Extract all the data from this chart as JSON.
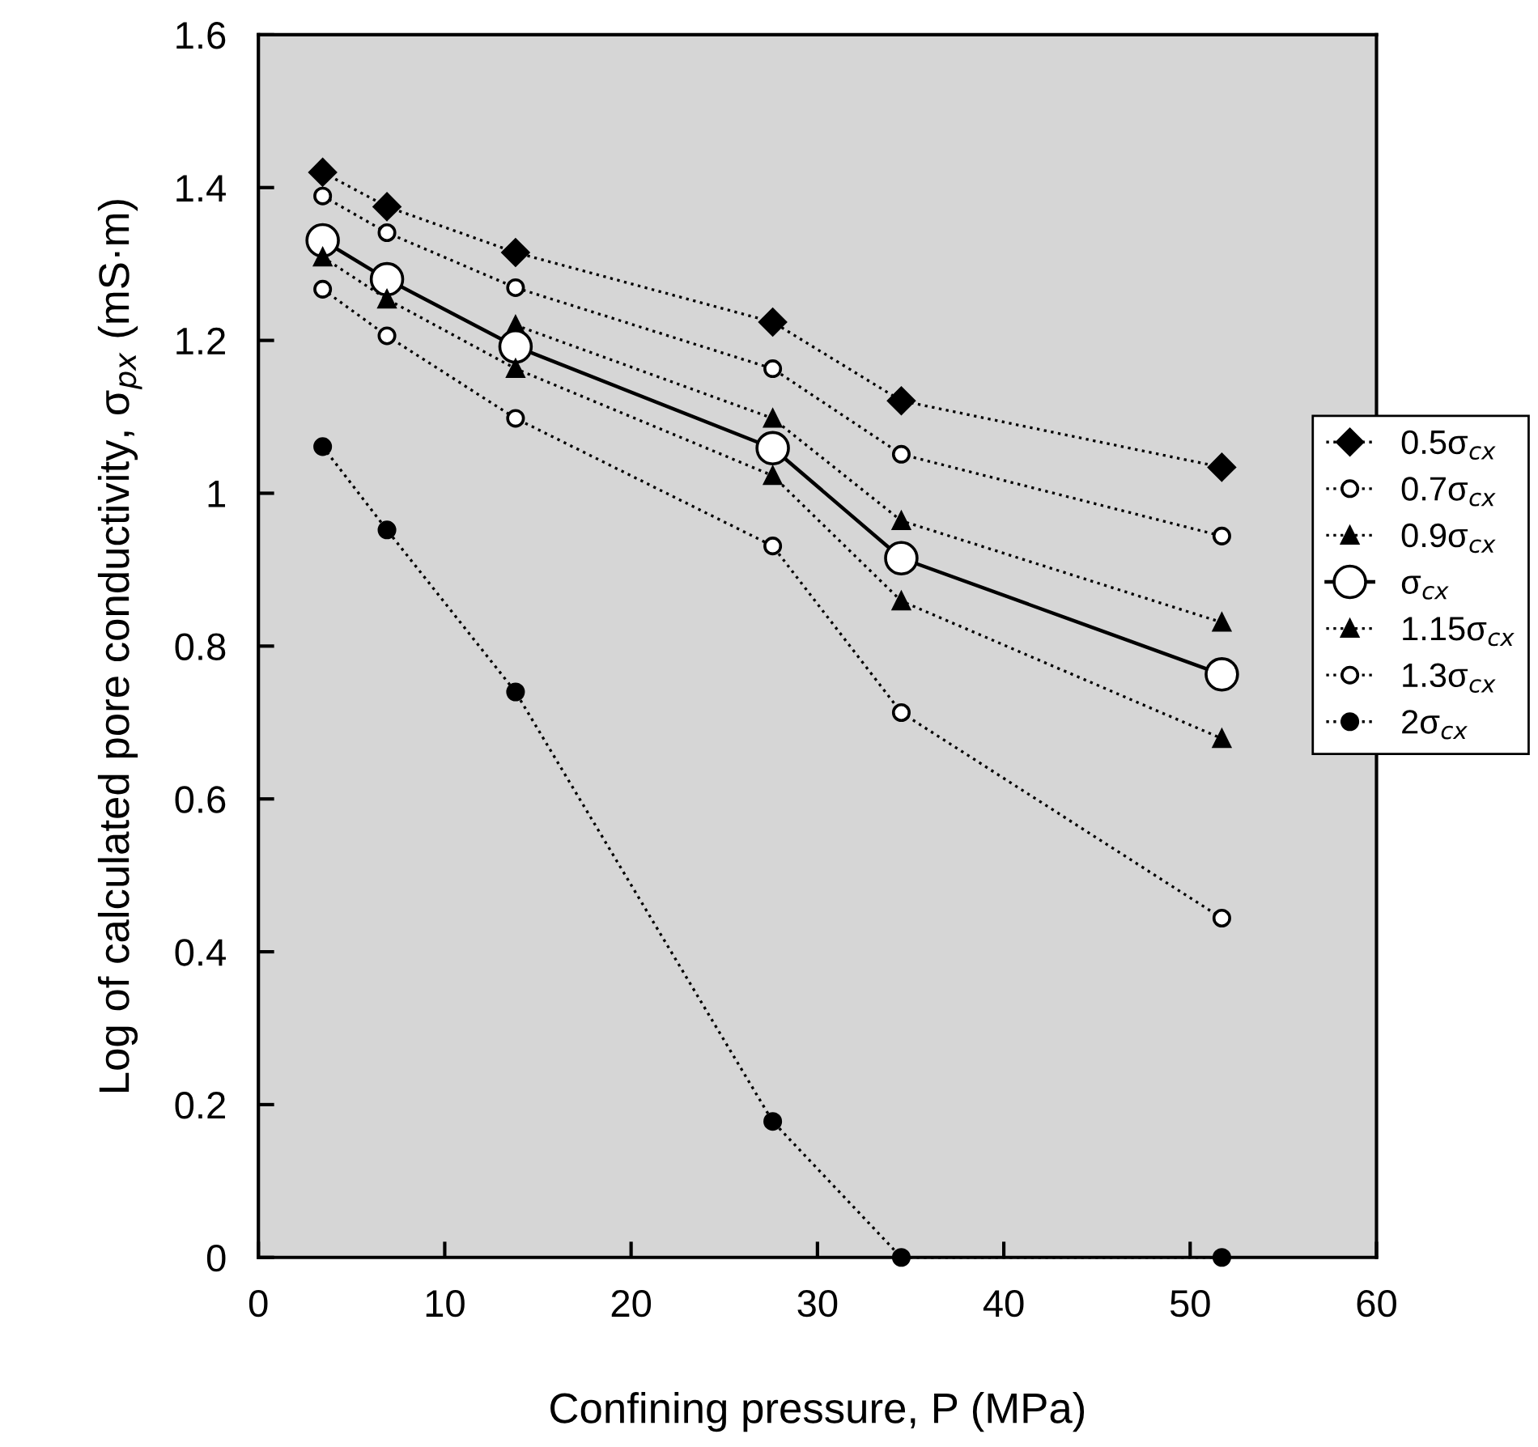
{
  "chart_data": {
    "type": "line",
    "xlabel": "Confining pressure, P (MPa)",
    "ylabel": "Log of calculated pore conductivity, σ$_{px}$ (mS·m)",
    "x": [
      3.45,
      6.9,
      13.8,
      27.6,
      34.5,
      51.7
    ],
    "xlim": [
      0,
      60
    ],
    "xticks": [
      0,
      10,
      20,
      30,
      40,
      50,
      60
    ],
    "ylim": [
      0,
      1.6
    ],
    "yticks": [
      0,
      0.2,
      0.4,
      0.6,
      0.8,
      1,
      1.2,
      1.4,
      1.6
    ],
    "grid": false,
    "legend": "right",
    "series": [
      {
        "name": "0.5σ$_{cx}$",
        "color": "#000000",
        "marker": "diamond",
        "line_style": "dotted",
        "values": [
          1.42,
          1.375,
          1.315,
          1.224,
          1.121,
          1.034
        ]
      },
      {
        "name": "0.7σ$_{cx}$",
        "color": "#ffffff",
        "marker": "circle",
        "line_style": "dotted",
        "values": [
          1.389,
          1.341,
          1.269,
          1.163,
          1.051,
          0.944
        ]
      },
      {
        "name": "0.9σ$_{cx}$",
        "color": "#000000",
        "marker": "triangle",
        "line_style": "dotted",
        "values": [
          null,
          null,
          1.22,
          1.098,
          0.964,
          0.831
        ]
      },
      {
        "name": "σ$_{cx}$",
        "color": "#ffffff",
        "marker": "circle",
        "line_style": "solid",
        "values": [
          1.331,
          1.28,
          1.192,
          1.059,
          0.915,
          0.763
        ]
      },
      {
        "name": "1.15σ$_{cx}$",
        "color": "#000000",
        "marker": "triangle",
        "line_style": "dotted",
        "values": [
          1.309,
          1.254,
          1.163,
          1.023,
          0.859,
          0.679
        ]
      },
      {
        "name": "1.3σ$_{cx}$",
        "color": "#ffffff",
        "marker": "circle",
        "line_style": "dotted",
        "values": [
          1.267,
          1.206,
          1.098,
          0.931,
          0.713,
          0.444
        ]
      },
      {
        "name": "2σ$_{cx}$",
        "color": "#000000",
        "marker": "circle",
        "line_style": "dotted",
        "values": [
          1.061,
          0.952,
          0.74,
          0.178,
          0,
          0
        ]
      }
    ]
  }
}
